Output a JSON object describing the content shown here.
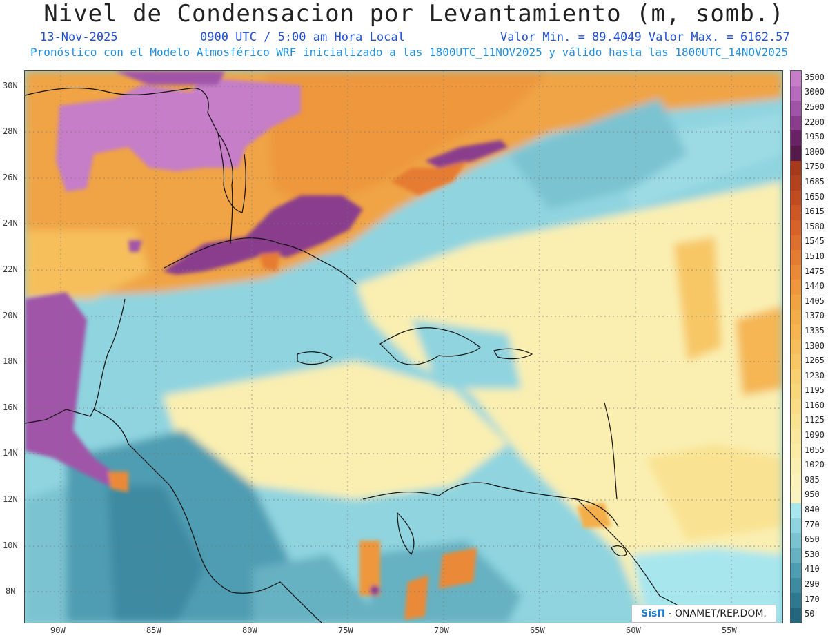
{
  "header": {
    "title": "Nivel de Condensacion por Levantamiento (m, somb.)",
    "date": "13-Nov-2025",
    "time": "0900 UTC / 5:00 am Hora Local",
    "min_max": "Valor Min. = 89.4049  Valor Max. = 6162.57",
    "forecast": "Pronóstico con el Modelo Atmosférico WRF inicializado a las 1800UTC_11NOV2025 y válido hasta las  1800UTC_14NOV2025"
  },
  "axes": {
    "lat_labels": [
      "30N",
      "28N",
      "26N",
      "24N",
      "22N",
      "20N",
      "18N",
      "16N",
      "14N",
      "12N",
      "10N",
      "8N"
    ],
    "lon_labels": [
      "90W",
      "85W",
      "80W",
      "75W",
      "70W",
      "65W",
      "60W",
      "55W"
    ]
  },
  "colorbar": {
    "labels": [
      "3500",
      "3000",
      "2500",
      "2200",
      "1950",
      "1800",
      "1750",
      "1685",
      "1650",
      "1615",
      "1580",
      "1545",
      "1510",
      "1475",
      "1440",
      "1405",
      "1370",
      "1335",
      "1300",
      "1265",
      "1230",
      "1195",
      "1160",
      "1125",
      "1090",
      "1055",
      "1020",
      "985",
      "950",
      "840",
      "770",
      "650",
      "530",
      "410",
      "290",
      "170",
      "50"
    ],
    "colors": [
      "#c57ec7",
      "#b66bbf",
      "#a054a8",
      "#8a3d8d",
      "#6a2266",
      "#551a4a",
      "#a63a1c",
      "#b5421f",
      "#c24c22",
      "#cf5726",
      "#d8622a",
      "#df6f2f",
      "#e57c33",
      "#ea8a37",
      "#ee973c",
      "#f1a342",
      "#f3ad49",
      "#f5b652",
      "#f6bf5c",
      "#f7c766",
      "#f8cf71",
      "#f8d67c",
      "#f9dc87",
      "#f9e292",
      "#f9e79d",
      "#faeba7",
      "#faefb1",
      "#faf2ba",
      "#f9f3c2",
      "#a8e6ee",
      "#8fd4df",
      "#7cc3d1",
      "#66b1c2",
      "#4f9db2",
      "#3d8aa1",
      "#2e7890",
      "#25667f"
    ]
  },
  "credit": {
    "brand": "SisΠ",
    "text": "- ONAMET/REP.DOM."
  }
}
